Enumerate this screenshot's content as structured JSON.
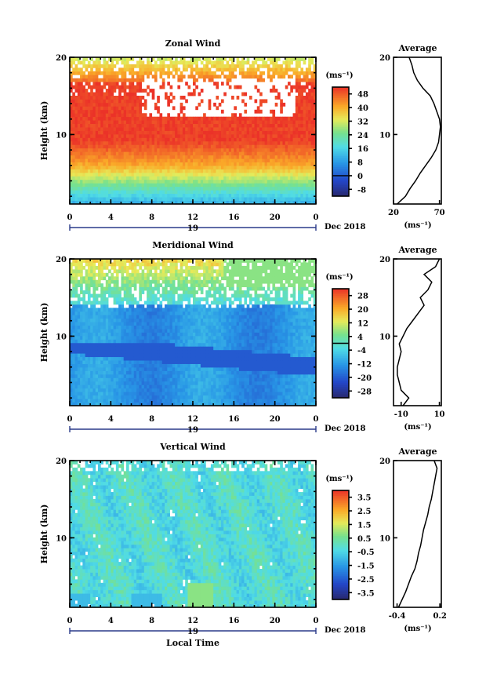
{
  "xlabel": "Local Time",
  "date_label": "Dec 2018",
  "day_label": "19",
  "x_ticks": [
    "0",
    "4",
    "8",
    "12",
    "16",
    "20",
    "0"
  ],
  "ylabel": "Height (km)",
  "y_ticks": [
    "20",
    "10"
  ],
  "profile_title": "Average",
  "unit_label": "(ms⁻¹)",
  "chart_data": [
    {
      "type": "heatmap",
      "title": "Zonal Wind",
      "ylim": [
        1,
        20
      ],
      "xlim": [
        0,
        24
      ],
      "colorbar_ticks": [
        "48",
        "40",
        "32",
        "24",
        "16",
        "8",
        "0",
        "-8"
      ],
      "colorbar_range": [
        -12,
        52
      ],
      "colorbar_zero": 0,
      "profile": {
        "xticks": [
          "20",
          "70"
        ],
        "xlim": [
          20,
          72
        ],
        "heights": [
          1,
          2,
          3,
          4,
          5,
          6,
          7,
          8,
          9,
          10,
          11,
          12,
          13,
          14,
          15,
          16,
          17,
          18,
          19,
          20
        ],
        "values": [
          24,
          33,
          38,
          44,
          49,
          55,
          61,
          66,
          69,
          70,
          71,
          70,
          67,
          64,
          60,
          52,
          46,
          42,
          40,
          37
        ]
      }
    },
    {
      "type": "heatmap",
      "title": "Meridional Wind",
      "ylim": [
        1,
        20
      ],
      "xlim": [
        0,
        24
      ],
      "colorbar_ticks": [
        "28",
        "20",
        "12",
        "4",
        "-4",
        "-12",
        "-20",
        "-28"
      ],
      "colorbar_range": [
        -32,
        32
      ],
      "colorbar_zero": 0,
      "profile": {
        "xticks": [
          "-10",
          "10"
        ],
        "xlim": [
          -14,
          11
        ],
        "heights": [
          1,
          2,
          3,
          4,
          5,
          6,
          7,
          8,
          9,
          10,
          11,
          12,
          13,
          14,
          15,
          16,
          17,
          18,
          19,
          20
        ],
        "values": [
          -9,
          -6,
          -10,
          -11,
          -12,
          -12,
          -11,
          -10,
          -11,
          -9,
          -7,
          -4,
          -1,
          2,
          0,
          4,
          6,
          2,
          8,
          10
        ]
      }
    },
    {
      "type": "heatmap",
      "title": "Vertical Wind",
      "ylim": [
        1,
        20
      ],
      "xlim": [
        0,
        24
      ],
      "colorbar_ticks": [
        "3.5",
        "2.5",
        "1.5",
        "0.5",
        "-0.5",
        "-1.5",
        "-2.5",
        "-3.5"
      ],
      "colorbar_range": [
        -4,
        4
      ],
      "colorbar_zero": null,
      "profile": {
        "xticks": [
          "-0.4",
          "0.2"
        ],
        "xlim": [
          -0.45,
          0.22
        ],
        "heights": [
          1,
          2,
          3,
          4,
          5,
          6,
          7,
          8,
          9,
          10,
          11,
          12,
          13,
          14,
          15,
          16,
          17,
          18,
          19,
          20
        ],
        "values": [
          -0.38,
          -0.33,
          -0.28,
          -0.24,
          -0.2,
          -0.15,
          -0.12,
          -0.1,
          -0.07,
          -0.05,
          -0.03,
          0.0,
          0.03,
          0.05,
          0.08,
          0.1,
          0.12,
          0.14,
          0.16,
          0.12
        ]
      }
    }
  ]
}
